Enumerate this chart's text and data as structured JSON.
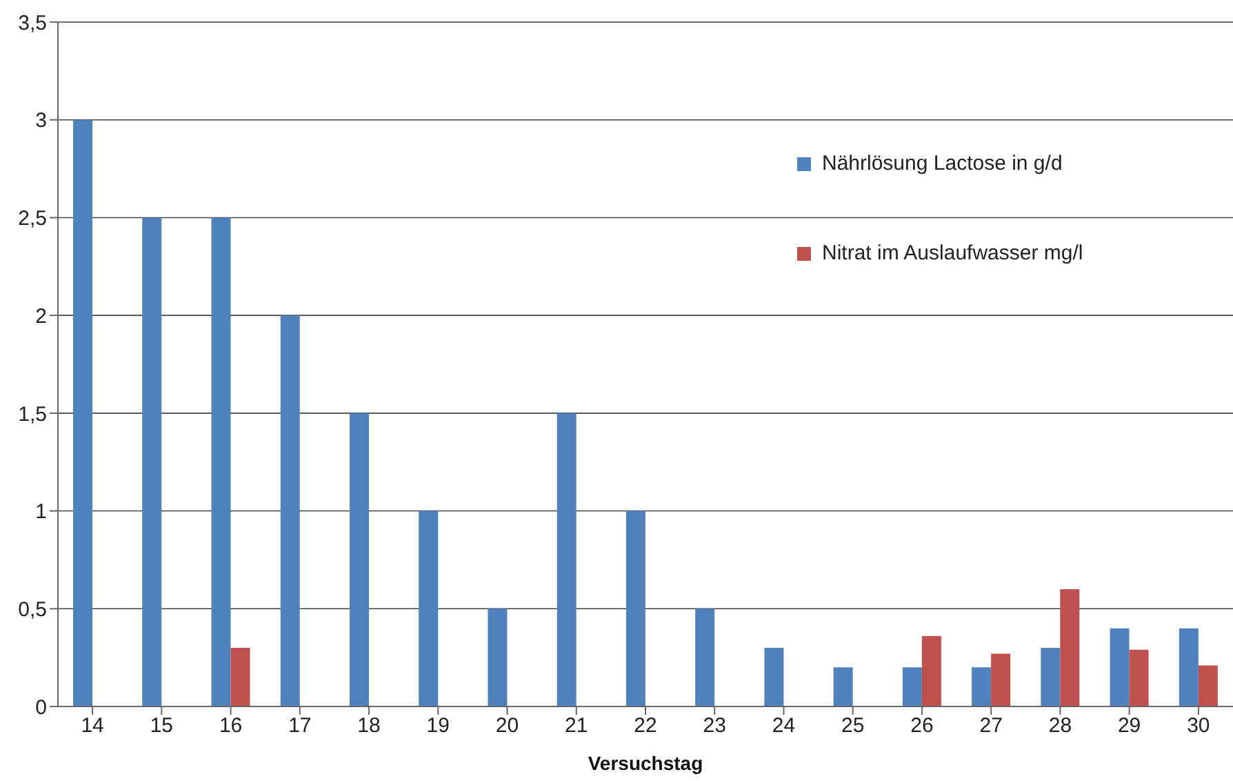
{
  "chart_data": {
    "type": "bar",
    "xlabel": "Versuchstag",
    "categories": [
      "14",
      "15",
      "16",
      "17",
      "18",
      "19",
      "20",
      "21",
      "22",
      "23",
      "24",
      "25",
      "26",
      "27",
      "28",
      "29",
      "30"
    ],
    "series": [
      {
        "name": "Nährlösung Lactose in g/d",
        "color": "#4f81bd",
        "values": [
          3,
          2.5,
          2.5,
          2,
          1.5,
          1,
          0.5,
          1.5,
          1,
          0.5,
          0.3,
          0.2,
          0.2,
          0.2,
          0.3,
          0.4,
          0.4
        ]
      },
      {
        "name": "Nitrat im Auslaufwasser mg/l",
        "color": "#c0504d",
        "values": [
          null,
          null,
          0.3,
          null,
          null,
          null,
          null,
          null,
          null,
          null,
          null,
          null,
          0.36,
          0.27,
          0.6,
          0.29,
          0.21
        ]
      }
    ],
    "ylim": [
      0,
      3.5
    ],
    "yticks": [
      0,
      {
        "value": 0.5,
        "label": "0,5"
      },
      1,
      {
        "value": 1.5,
        "label": "1,5"
      },
      2,
      {
        "value": 2.5,
        "label": "2,5"
      },
      3,
      {
        "value": 3.5,
        "label": "3,5"
      }
    ],
    "grid": "y",
    "legend": "top right"
  }
}
